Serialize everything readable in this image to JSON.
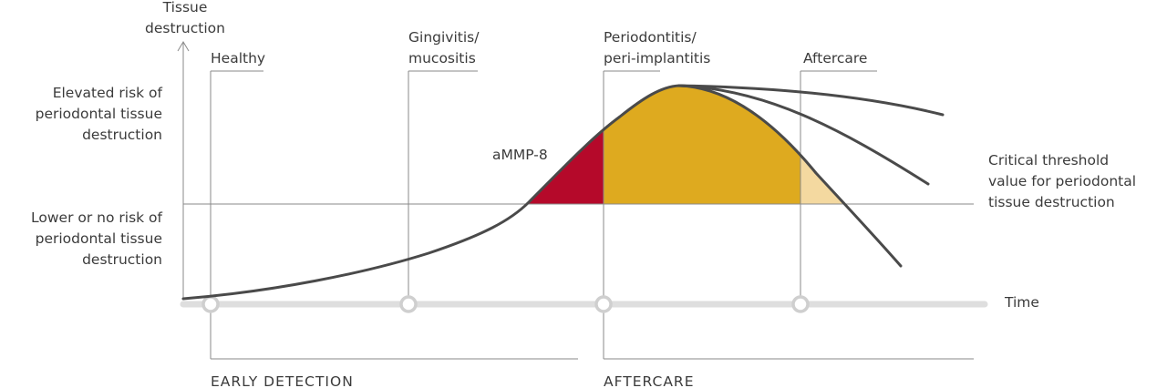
{
  "axes": {
    "y_label": [
      "Tissue",
      "destruction"
    ],
    "x_label": "Time"
  },
  "left_labels": {
    "elevated": [
      "Elevated risk of",
      "periodontal tissue",
      "destruction"
    ],
    "lower": [
      "Lower or no risk of",
      "periodontal tissue",
      "destruction"
    ]
  },
  "threshold_label": [
    "Critical threshold",
    "value for periodontal",
    "tissue destruction"
  ],
  "stages": [
    {
      "lines": [
        "Healthy"
      ]
    },
    {
      "lines": [
        "Gingivitis/",
        "mucositis"
      ]
    },
    {
      "lines": [
        "Periodontitis/",
        "peri-implantitis"
      ]
    },
    {
      "lines": [
        "Aftercare"
      ]
    }
  ],
  "marker_label": "aMMP-8",
  "phases": {
    "early": "EARLY DETECTION",
    "aftercare": "AFTERCARE"
  },
  "colors": {
    "ammp8_region": "#b5092a",
    "periodontitis_region": "#deaa1f",
    "aftercare_region": "#f4d9a0",
    "timeline": "#dedede",
    "curve": "#4a4a4a"
  }
}
